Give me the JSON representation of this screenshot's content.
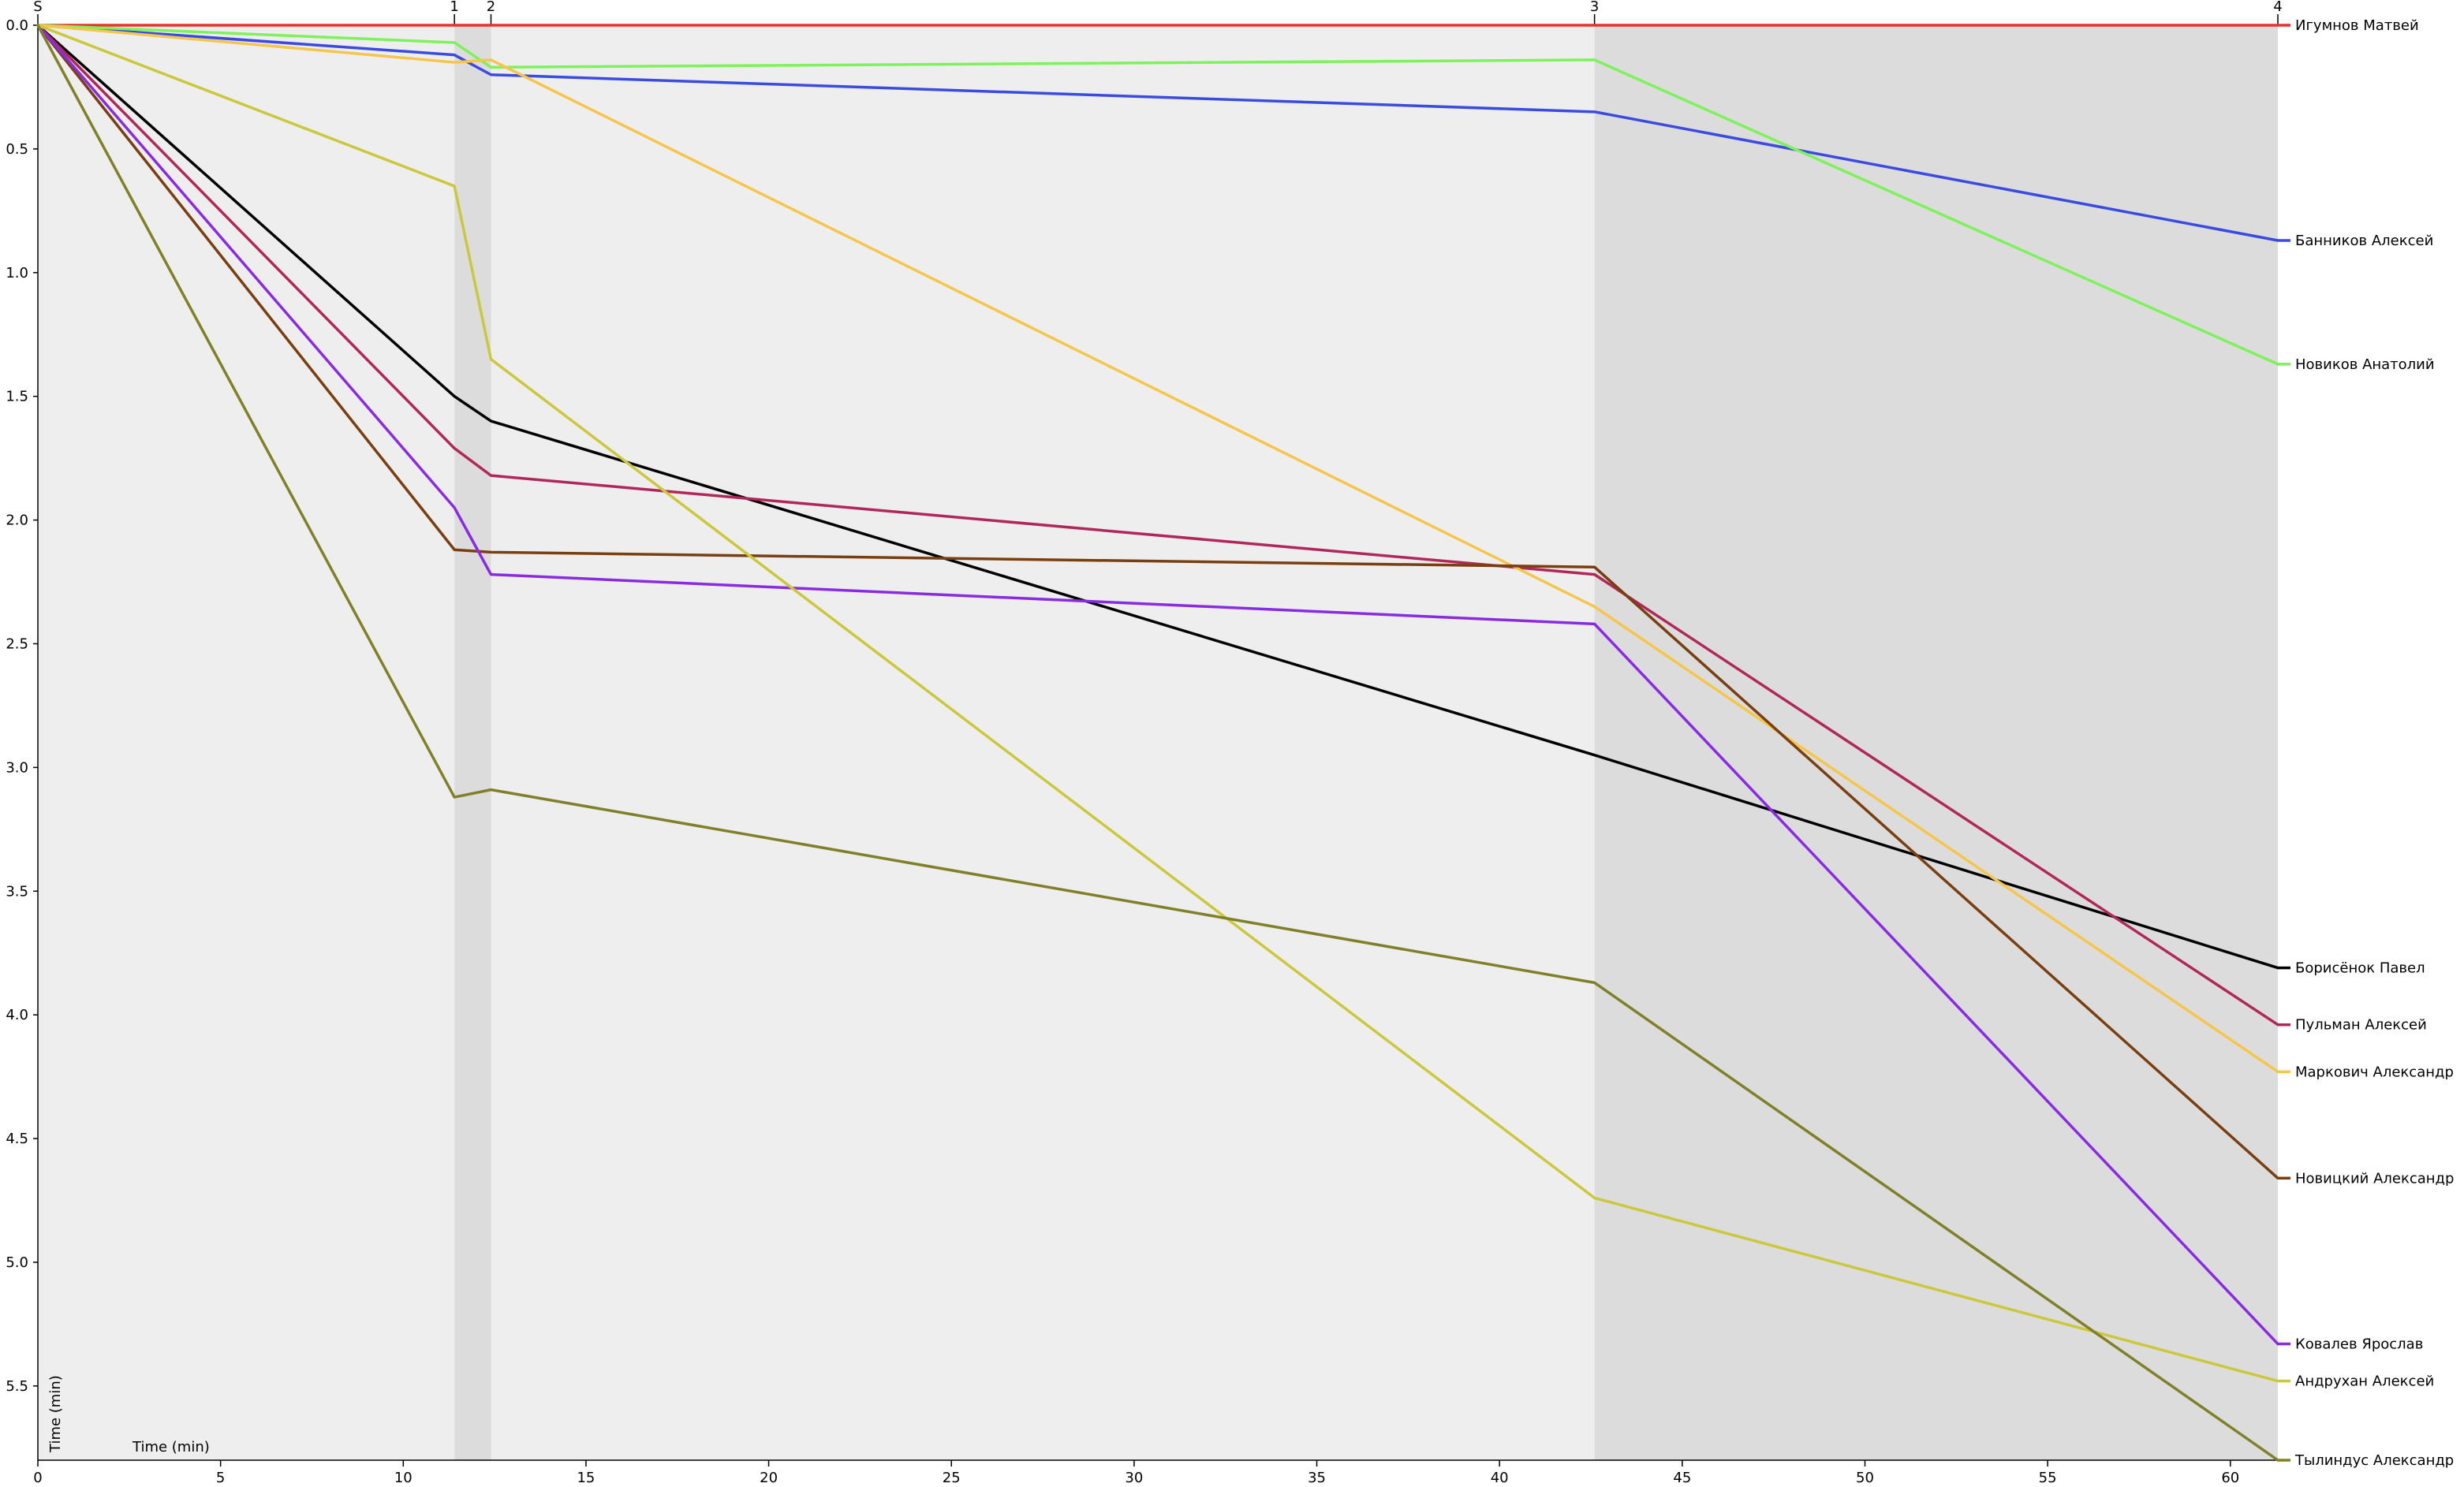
{
  "chart_data": {
    "type": "line",
    "title": "",
    "xlabel": "Time (min)",
    "ylabel": "Time (min)",
    "xlim": [
      0,
      61.3
    ],
    "ylim": [
      0,
      5.8
    ],
    "y_inverted": true,
    "grid": false,
    "xticks": [
      0,
      5,
      10,
      15,
      20,
      25,
      30,
      35,
      40,
      45,
      50,
      55,
      60
    ],
    "yticks": [
      0.0,
      0.5,
      1.0,
      1.5,
      2.0,
      2.5,
      3.0,
      3.5,
      4.0,
      4.5,
      5.0,
      5.5
    ],
    "ytick_labels": [
      "0.0",
      "0.5",
      "1.0",
      "1.5",
      "2.0",
      "2.5",
      "3.0",
      "3.5",
      "4.0",
      "4.5",
      "5.0",
      "5.5"
    ],
    "controls": [
      {
        "label": "S",
        "x": 0
      },
      {
        "label": "1",
        "x": 11.4
      },
      {
        "label": "2",
        "x": 12.4
      },
      {
        "label": "3",
        "x": 42.6
      },
      {
        "label": "4",
        "x": 61.3
      }
    ],
    "bands": [
      {
        "from": 0,
        "to": 11.4,
        "shade": "light"
      },
      {
        "from": 11.4,
        "to": 12.4,
        "shade": "dark"
      },
      {
        "from": 12.4,
        "to": 42.6,
        "shade": "light"
      },
      {
        "from": 42.6,
        "to": 61.3,
        "shade": "dark"
      }
    ],
    "series": [
      {
        "name": "Игумнов Матвей",
        "color": "#e8312a",
        "x": [
          0,
          11.4,
          12.4,
          42.6,
          61.3
        ],
        "y": [
          0,
          0,
          0,
          0,
          0
        ]
      },
      {
        "name": "Банников Алексей",
        "color": "#3a4be0",
        "x": [
          0,
          11.4,
          12.4,
          42.6,
          61.3
        ],
        "y": [
          0,
          0.12,
          0.2,
          0.35,
          0.87
        ]
      },
      {
        "name": "Новиков Анатолий",
        "color": "#7df25a",
        "x": [
          0,
          11.4,
          12.4,
          42.6,
          61.3
        ],
        "y": [
          0,
          0.07,
          0.17,
          0.14,
          1.37
        ]
      },
      {
        "name": "Борисёнок Павел",
        "color": "#000000",
        "x": [
          0,
          11.4,
          12.4,
          42.6,
          61.3
        ],
        "y": [
          0,
          1.5,
          1.6,
          2.95,
          3.81
        ]
      },
      {
        "name": "Пульман Алексей",
        "color": "#b0285a",
        "x": [
          0,
          11.4,
          12.4,
          42.6,
          61.3
        ],
        "y": [
          0,
          1.71,
          1.82,
          2.22,
          4.04
        ]
      },
      {
        "name": "Маркович Александр",
        "color": "#f5c64a",
        "x": [
          0,
          11.4,
          12.4,
          42.6,
          61.3
        ],
        "y": [
          0,
          0.15,
          0.14,
          2.35,
          4.23
        ]
      },
      {
        "name": "Новицкий Александр",
        "color": "#7a3f10",
        "x": [
          0,
          11.4,
          12.4,
          42.6,
          61.3
        ],
        "y": [
          0,
          2.12,
          2.13,
          2.19,
          4.66
        ]
      },
      {
        "name": "Ковалев Ярослав",
        "color": "#8a2be2",
        "x": [
          0,
          11.4,
          12.4,
          42.6,
          61.3
        ],
        "y": [
          0,
          1.95,
          2.22,
          2.42,
          5.33
        ]
      },
      {
        "name": "Андрухан Алексей",
        "color": "#cbc83c",
        "x": [
          0,
          11.4,
          12.4,
          42.6,
          61.3
        ],
        "y": [
          0,
          0.65,
          1.35,
          4.74,
          5.48
        ]
      },
      {
        "name": "Тылиндус Александр",
        "color": "#808028",
        "x": [
          0,
          11.4,
          12.4,
          42.6,
          61.3
        ],
        "y": [
          0,
          3.12,
          3.09,
          3.87,
          5.8
        ]
      }
    ]
  },
  "colors": {
    "band_light": "#eeeeee",
    "band_dark": "#dcdcdc",
    "axis": "#000000"
  }
}
